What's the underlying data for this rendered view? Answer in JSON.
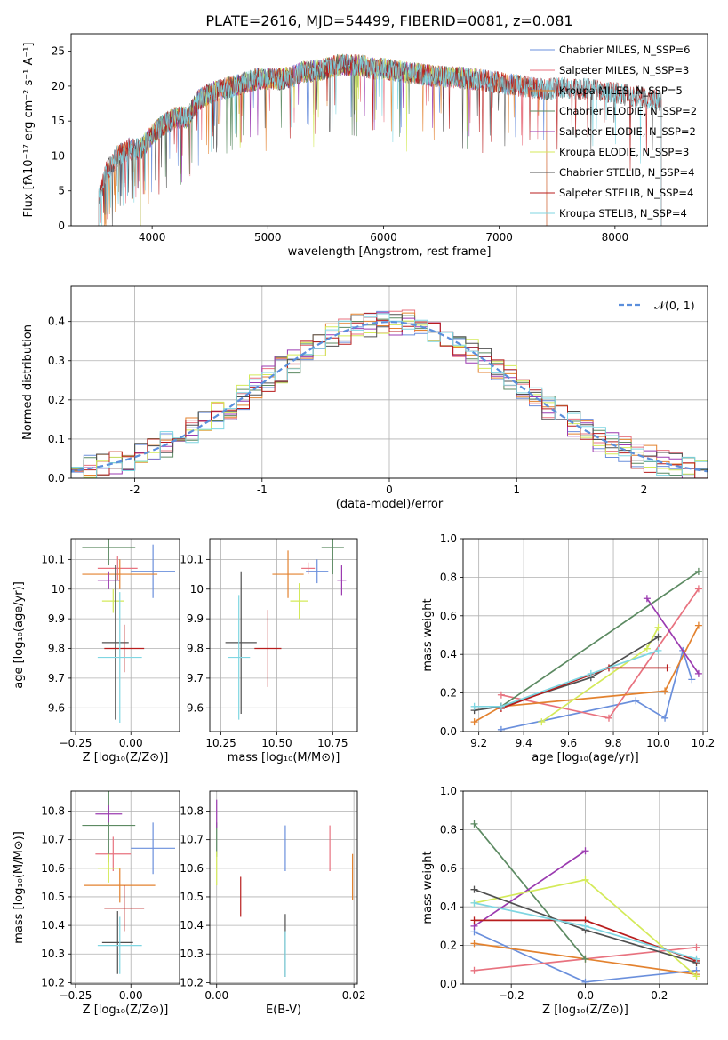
{
  "figure_title": "PLATE=2616, MJD=54499, FIBERID=0081, z=0.081",
  "colors": {
    "chabrier_miles": "#6a8fdc",
    "salpeter_miles": "#e8727f",
    "kroupa_miles": "#e3822f",
    "chabrier_elodie": "#5c8a62",
    "salpeter_elodie": "#9b3bb0",
    "kroupa_elodie": "#d4ea5a",
    "chabrier_stelib": "#505050",
    "salpeter_stelib": "#b81d1d",
    "kroupa_stelib": "#7fd6e2"
  },
  "chart_data": [
    {
      "id": "spectrum",
      "type": "line",
      "title": "",
      "xlabel": "wavelength [Angstrom, rest frame]",
      "ylabel": "Flux [fλ10⁻¹⁷ erg cm⁻² s⁻¹ A⁻¹]",
      "xlim": [
        3300,
        8800
      ],
      "ylim": [
        0,
        27.5
      ],
      "xticks": [
        4000,
        5000,
        6000,
        7000,
        8000
      ],
      "yticks": [
        0,
        5,
        10,
        15,
        20,
        25
      ],
      "grid": false,
      "legend_position": "right",
      "legend": [
        {
          "label": "Chabrier MILES, N_SSP=6",
          "color_key": "chabrier_miles"
        },
        {
          "label": "Salpeter MILES, N_SSP=3",
          "color_key": "salpeter_miles"
        },
        {
          "label": "Kroupa MILES, N_SSP=5",
          "color_key": "kroupa_miles"
        },
        {
          "label": "Chabrier ELODIE, N_SSP=2",
          "color_key": "chabrier_elodie"
        },
        {
          "label": "Salpeter ELODIE, N_SSP=2",
          "color_key": "salpeter_elodie"
        },
        {
          "label": "Kroupa ELODIE, N_SSP=3",
          "color_key": "kroupa_elodie"
        },
        {
          "label": "Chabrier STELIB, N_SSP=4",
          "color_key": "chabrier_stelib"
        },
        {
          "label": "Salpeter STELIB, N_SSP=4",
          "color_key": "salpeter_stelib"
        },
        {
          "label": "Kroupa STELIB, N_SSP=4",
          "color_key": "kroupa_stelib"
        }
      ],
      "continuum": [
        [
          3550,
          4.5
        ],
        [
          3600,
          7.5
        ],
        [
          3700,
          10
        ],
        [
          3800,
          11
        ],
        [
          3900,
          11
        ],
        [
          4000,
          13
        ],
        [
          4100,
          14.5
        ],
        [
          4200,
          15.5
        ],
        [
          4300,
          15.5
        ],
        [
          4400,
          18
        ],
        [
          4500,
          19
        ],
        [
          4600,
          19.5
        ],
        [
          4700,
          20
        ],
        [
          4800,
          20.5
        ],
        [
          4900,
          21
        ],
        [
          5000,
          21
        ],
        [
          5100,
          21
        ],
        [
          5200,
          21.3
        ],
        [
          5300,
          22
        ],
        [
          5400,
          22.2
        ],
        [
          5500,
          22.5
        ],
        [
          5600,
          23
        ],
        [
          5700,
          23
        ],
        [
          5800,
          23
        ],
        [
          5900,
          22.5
        ],
        [
          6000,
          22.5
        ],
        [
          6100,
          22.2
        ],
        [
          6200,
          22
        ],
        [
          6400,
          21.5
        ],
        [
          6600,
          21.3
        ],
        [
          6800,
          21
        ],
        [
          7000,
          20.5
        ],
        [
          7200,
          20
        ],
        [
          7400,
          19.5
        ],
        [
          7600,
          19.8
        ],
        [
          7800,
          19.5
        ],
        [
          8000,
          19
        ],
        [
          8200,
          18.5
        ],
        [
          8400,
          18
        ]
      ],
      "segments": [
        {
          "color_key": "chabrier_miles",
          "xrange": [
            3540,
            7410
          ]
        },
        {
          "color_key": "salpeter_miles",
          "xrange": [
            3540,
            7410
          ]
        },
        {
          "color_key": "kroupa_miles",
          "xrange": [
            3540,
            7410
          ]
        },
        {
          "color_key": "chabrier_elodie",
          "xrange": [
            3900,
            6800
          ]
        },
        {
          "color_key": "salpeter_elodie",
          "xrange": [
            3900,
            6800
          ]
        },
        {
          "color_key": "kroupa_elodie",
          "xrange": [
            3900,
            6800
          ]
        },
        {
          "color_key": "chabrier_stelib",
          "xrange": [
            3540,
            8400
          ]
        },
        {
          "color_key": "salpeter_stelib",
          "xrange": [
            3540,
            8400
          ]
        },
        {
          "color_key": "kroupa_stelib",
          "xrange": [
            3540,
            8400
          ]
        }
      ]
    },
    {
      "id": "residuals",
      "type": "step",
      "title": "",
      "xlabel": "(data-model)/error",
      "ylabel": "Normed distribution",
      "xlim": [
        -2.5,
        2.5
      ],
      "ylim": [
        0,
        0.49
      ],
      "xticks": [
        -2,
        -1,
        0,
        1,
        2
      ],
      "yticks": [
        0.0,
        0.1,
        0.2,
        0.3,
        0.4
      ],
      "grid": true,
      "legend_position": "top-right",
      "legend": [
        {
          "label": "𝒩(0, 1)",
          "style": "dashed",
          "color": "#5b8fdc"
        }
      ],
      "bin_width": 0.1,
      "series_color_keys": [
        "chabrier_miles",
        "salpeter_miles",
        "kroupa_miles",
        "chabrier_elodie",
        "salpeter_elodie",
        "kroupa_elodie",
        "chabrier_stelib",
        "salpeter_stelib",
        "kroupa_stelib"
      ]
    },
    {
      "id": "age_vs_Z",
      "type": "errorbar",
      "xlabel": "Z [log₁₀(Z/Z⊙)]",
      "ylabel": "age  [log₁₀(age/yr)]",
      "xlim": [
        -0.27,
        0.22
      ],
      "ylim": [
        9.52,
        10.17
      ],
      "xticks": [
        -0.25,
        0.0
      ],
      "xtick_labels": [
        "−0.25",
        "0.00"
      ],
      "yticks": [
        9.6,
        9.7,
        9.8,
        9.9,
        10.0,
        10.1
      ],
      "grid": true,
      "points": [
        {
          "c": "chabrier_miles",
          "x": 0.1,
          "xe": 0.1,
          "y": 10.06,
          "ye": 0.09
        },
        {
          "c": "salpeter_miles",
          "x": -0.06,
          "xe": 0.09,
          "y": 10.07,
          "ye": 0.04
        },
        {
          "c": "kroupa_miles",
          "x": -0.05,
          "xe": 0.17,
          "y": 10.05,
          "ye": 0.05
        },
        {
          "c": "chabrier_elodie",
          "x": -0.1,
          "xe": 0.12,
          "y": 10.14,
          "ye": 0.06
        },
        {
          "c": "salpeter_elodie",
          "x": -0.1,
          "xe": 0.05,
          "y": 10.03,
          "ye": 0.03
        },
        {
          "c": "kroupa_elodie",
          "x": -0.08,
          "xe": 0.05,
          "y": 9.96,
          "ye": 0.04
        },
        {
          "c": "chabrier_stelib",
          "x": -0.07,
          "xe": 0.06,
          "y": 9.82,
          "ye": 0.26
        },
        {
          "c": "salpeter_stelib",
          "x": -0.03,
          "xe": 0.09,
          "y": 9.8,
          "ye": 0.08
        },
        {
          "c": "kroupa_stelib",
          "x": -0.05,
          "xe": 0.1,
          "y": 9.77,
          "ye": 0.22
        }
      ]
    },
    {
      "id": "age_vs_mass",
      "type": "errorbar",
      "xlabel": "mass [log₁₀(M/M⊙)]",
      "ylabel": "",
      "xlim": [
        10.2,
        10.86
      ],
      "ylim": [
        9.52,
        10.17
      ],
      "xticks": [
        10.25,
        10.5,
        10.75
      ],
      "xtick_labels": [
        "10.25",
        "10.50",
        "10.75"
      ],
      "yticks": [
        9.6,
        9.7,
        9.8,
        9.9,
        10.0,
        10.1
      ],
      "grid": true,
      "points": [
        {
          "c": "chabrier_miles",
          "x": 10.68,
          "xe": 0.05,
          "y": 10.06,
          "ye": 0.04
        },
        {
          "c": "salpeter_miles",
          "x": 10.64,
          "xe": 0.03,
          "y": 10.07,
          "ye": 0.02
        },
        {
          "c": "kroupa_miles",
          "x": 10.55,
          "xe": 0.07,
          "y": 10.05,
          "ye": 0.08
        },
        {
          "c": "chabrier_elodie",
          "x": 10.75,
          "xe": 0.05,
          "y": 10.14,
          "ye": 0.09
        },
        {
          "c": "salpeter_elodie",
          "x": 10.79,
          "xe": 0.02,
          "y": 10.03,
          "ye": 0.05
        },
        {
          "c": "kroupa_elodie",
          "x": 10.6,
          "xe": 0.04,
          "y": 9.96,
          "ye": 0.06
        },
        {
          "c": "chabrier_stelib",
          "x": 10.34,
          "xe": 0.07,
          "y": 9.82,
          "ye": 0.24
        },
        {
          "c": "salpeter_stelib",
          "x": 10.46,
          "xe": 0.06,
          "y": 9.8,
          "ye": 0.13
        },
        {
          "c": "kroupa_stelib",
          "x": 10.33,
          "xe": 0.05,
          "y": 9.77,
          "ye": 0.21
        }
      ]
    },
    {
      "id": "weight_vs_age",
      "type": "line",
      "xlabel": "age  [log₁₀(age/yr)]",
      "ylabel": "mass weight",
      "xlim": [
        9.13,
        10.22
      ],
      "ylim": [
        0,
        1
      ],
      "xticks": [
        9.2,
        9.4,
        9.6,
        9.8,
        10.0,
        10.2
      ],
      "xtick_labels": [
        "9.2",
        "9.4",
        "9.6",
        "9.8",
        "10.0",
        "10.2"
      ],
      "yticks": [
        0.0,
        0.2,
        0.4,
        0.6,
        0.8,
        1.0
      ],
      "grid": true,
      "series": [
        {
          "c": "chabrier_miles",
          "x": [
            9.3,
            9.9,
            10.03,
            10.11,
            10.15
          ],
          "y": [
            0.01,
            0.16,
            0.07,
            0.42,
            0.27
          ]
        },
        {
          "c": "salpeter_miles",
          "x": [
            9.3,
            9.78,
            10.18
          ],
          "y": [
            0.19,
            0.07,
            0.74
          ]
        },
        {
          "c": "kroupa_miles",
          "x": [
            9.18,
            9.3,
            10.03,
            10.18
          ],
          "y": [
            0.05,
            0.13,
            0.21,
            0.55
          ]
        },
        {
          "c": "chabrier_elodie",
          "x": [
            9.3,
            10.18
          ],
          "y": [
            0.13,
            0.83
          ]
        },
        {
          "c": "salpeter_elodie",
          "x": [
            9.95,
            10.18
          ],
          "y": [
            0.69,
            0.3
          ]
        },
        {
          "c": "kroupa_elodie",
          "x": [
            9.48,
            9.95,
            10.0
          ],
          "y": [
            0.05,
            0.43,
            0.54
          ]
        },
        {
          "c": "chabrier_stelib",
          "x": [
            9.18,
            9.3,
            9.7,
            10.0
          ],
          "y": [
            0.11,
            0.13,
            0.28,
            0.49
          ]
        },
        {
          "c": "salpeter_stelib",
          "x": [
            9.3,
            9.78,
            10.04
          ],
          "y": [
            0.12,
            0.33,
            0.33
          ]
        },
        {
          "c": "kroupa_stelib",
          "x": [
            9.18,
            9.3,
            9.7,
            10.0
          ],
          "y": [
            0.13,
            0.13,
            0.3,
            0.42
          ]
        }
      ]
    },
    {
      "id": "mass_vs_Z",
      "type": "errorbar",
      "xlabel": "Z [log₁₀(Z/Z⊙)]",
      "ylabel": "mass [log₁₀(M/M⊙)]",
      "xlim": [
        -0.27,
        0.22
      ],
      "ylim": [
        10.195,
        10.87
      ],
      "xticks": [
        -0.25,
        0.0
      ],
      "xtick_labels": [
        "−0.25",
        "0.00"
      ],
      "yticks": [
        10.2,
        10.3,
        10.4,
        10.5,
        10.6,
        10.7,
        10.8
      ],
      "grid": true,
      "points": [
        {
          "c": "chabrier_miles",
          "x": 0.1,
          "xe": 0.1,
          "y": 10.67,
          "ye": 0.09
        },
        {
          "c": "salpeter_miles",
          "x": -0.08,
          "xe": 0.08,
          "y": 10.65,
          "ye": 0.06
        },
        {
          "c": "kroupa_miles",
          "x": -0.05,
          "xe": 0.16,
          "y": 10.54,
          "ye": 0.06
        },
        {
          "c": "chabrier_elodie",
          "x": -0.1,
          "xe": 0.12,
          "y": 10.75,
          "ye": 0.13
        },
        {
          "c": "salpeter_elodie",
          "x": -0.1,
          "xe": 0.06,
          "y": 10.79,
          "ye": 0.03
        },
        {
          "c": "kroupa_elodie",
          "x": -0.1,
          "xe": 0.05,
          "y": 10.6,
          "ye": 0.05
        },
        {
          "c": "chabrier_stelib",
          "x": -0.06,
          "xe": 0.07,
          "y": 10.34,
          "ye": 0.11
        },
        {
          "c": "salpeter_stelib",
          "x": -0.03,
          "xe": 0.09,
          "y": 10.46,
          "ye": 0.08
        },
        {
          "c": "kroupa_stelib",
          "x": -0.05,
          "xe": 0.1,
          "y": 10.33,
          "ye": 0.1
        }
      ]
    },
    {
      "id": "mass_vs_ebv",
      "type": "errorbar",
      "xlabel": "E(B-V)",
      "ylabel": "",
      "xlim": [
        -0.001,
        0.0205
      ],
      "ylim": [
        10.195,
        10.87
      ],
      "xticks": [
        0.0,
        0.02
      ],
      "xtick_labels": [
        "0.00",
        "0.02"
      ],
      "yticks": [
        10.2,
        10.3,
        10.4,
        10.5,
        10.6,
        10.7,
        10.8
      ],
      "grid": true,
      "points": [
        {
          "c": "chabrier_miles",
          "x": 0.01,
          "xe": 0,
          "y": 10.67,
          "ye": 0.08
        },
        {
          "c": "salpeter_miles",
          "x": 0.0165,
          "xe": 0,
          "y": 10.67,
          "ye": 0.08
        },
        {
          "c": "kroupa_miles",
          "x": 0.0198,
          "xe": 0,
          "y": 10.57,
          "ye": 0.08
        },
        {
          "c": "chabrier_elodie",
          "x": 0.0,
          "xe": 0,
          "y": 10.7,
          "ye": 0.06
        },
        {
          "c": "salpeter_elodie",
          "x": 0.0,
          "xe": 0,
          "y": 10.79,
          "ye": 0.05
        },
        {
          "c": "kroupa_elodie",
          "x": 0.0,
          "xe": 0,
          "y": 10.6,
          "ye": 0.06
        },
        {
          "c": "chabrier_stelib",
          "x": 0.01,
          "xe": 0,
          "y": 10.33,
          "ye": 0.11
        },
        {
          "c": "salpeter_stelib",
          "x": 0.0035,
          "xe": 0,
          "y": 10.5,
          "ye": 0.07
        },
        {
          "c": "kroupa_stelib",
          "x": 0.01,
          "xe": 0,
          "y": 10.3,
          "ye": 0.08
        }
      ]
    },
    {
      "id": "weight_vs_Z",
      "type": "line",
      "xlabel": "Z [log₁₀(Z/Z⊙)]",
      "ylabel": "mass weight",
      "xlim": [
        -0.33,
        0.33
      ],
      "ylim": [
        0,
        1
      ],
      "xticks": [
        -0.2,
        0.0,
        0.2
      ],
      "xtick_labels": [
        "−0.2",
        "0.0",
        "0.2"
      ],
      "yticks": [
        0.0,
        0.2,
        0.4,
        0.6,
        0.8,
        1.0
      ],
      "grid": true,
      "series": [
        {
          "c": "chabrier_miles",
          "x": [
            -0.3,
            0.0,
            0.3
          ],
          "y": [
            0.27,
            0.01,
            0.07
          ]
        },
        {
          "c": "salpeter_miles",
          "x": [
            -0.3,
            0.3
          ],
          "y": [
            0.07,
            0.19
          ]
        },
        {
          "c": "kroupa_miles",
          "x": [
            -0.3,
            0.0,
            0.3
          ],
          "y": [
            0.21,
            0.13,
            0.05
          ]
        },
        {
          "c": "chabrier_elodie",
          "x": [
            -0.3,
            0.0
          ],
          "y": [
            0.83,
            0.13
          ]
        },
        {
          "c": "salpeter_elodie",
          "x": [
            -0.3,
            0.0
          ],
          "y": [
            0.3,
            0.69
          ]
        },
        {
          "c": "kroupa_elodie",
          "x": [
            -0.3,
            0.0,
            0.3
          ],
          "y": [
            0.42,
            0.54,
            0.04
          ]
        },
        {
          "c": "chabrier_stelib",
          "x": [
            -0.3,
            0.0,
            0.3
          ],
          "y": [
            0.49,
            0.28,
            0.11
          ]
        },
        {
          "c": "salpeter_stelib",
          "x": [
            -0.3,
            0.0,
            0.3
          ],
          "y": [
            0.33,
            0.33,
            0.12
          ]
        },
        {
          "c": "kroupa_stelib",
          "x": [
            -0.3,
            0.0,
            0.3
          ],
          "y": [
            0.42,
            0.3,
            0.13
          ]
        }
      ]
    }
  ]
}
